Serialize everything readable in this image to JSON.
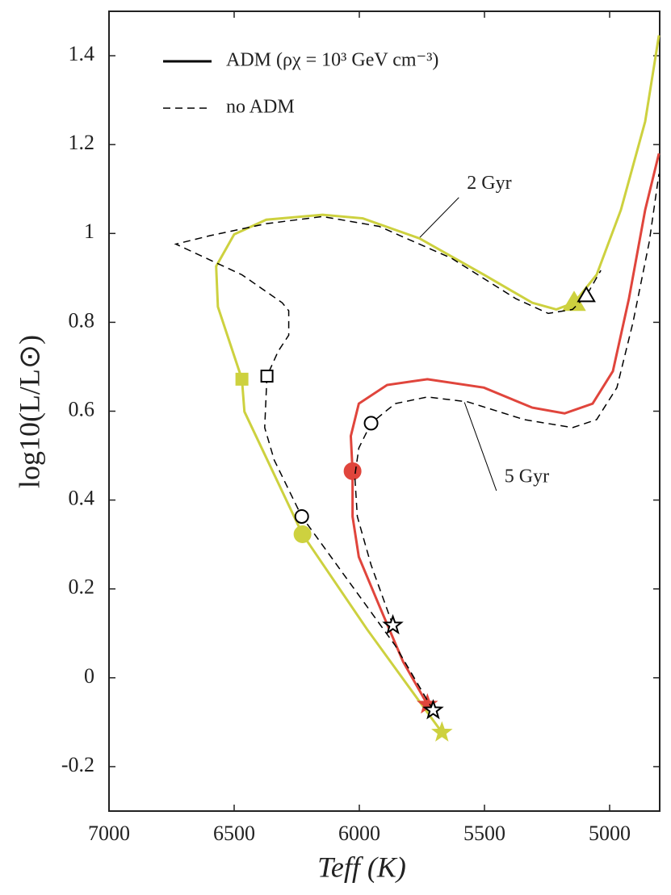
{
  "chart_data": {
    "type": "line",
    "xlabel": "Teff (K)",
    "ylabel": "log10(L/L⊙)",
    "xlim": [
      7000,
      4800
    ],
    "ylim": [
      -0.3,
      1.5
    ],
    "xticks": [
      7000,
      6500,
      6000,
      5500,
      5000
    ],
    "yticks": [
      -0.2,
      0,
      0.2,
      0.4,
      0.6,
      0.8,
      1,
      1.2,
      1.4
    ],
    "legend_loc": "upper left",
    "legend": [
      {
        "label": "ADM (ρχ = 10³ GeV cm⁻³)",
        "dash": false
      },
      {
        "label": "no ADM",
        "dash": true
      }
    ],
    "annotations": [
      {
        "text": "2 Gyr",
        "x": 5570,
        "y": 1.11,
        "to_x": 5760,
        "to_y": 0.99
      },
      {
        "text": "5 Gyr",
        "x": 5420,
        "y": 0.45,
        "to_x": 5580,
        "to_y": 0.62
      }
    ],
    "series": [
      {
        "color": "#cdd13f",
        "dash": false,
        "x": [
          5670,
          5969,
          6227,
          6459,
          6469,
          6565,
          6572,
          6500,
          6372,
          6147,
          5986,
          5760,
          5502,
          5309,
          5213,
          5142,
          5052,
          4955,
          4858,
          4803
        ],
        "values": [
          -0.123,
          0.109,
          0.323,
          0.599,
          0.672,
          0.835,
          0.926,
          0.998,
          1.031,
          1.042,
          1.034,
          0.989,
          0.907,
          0.844,
          0.829,
          0.844,
          0.907,
          1.053,
          1.252,
          1.446
        ],
        "markers": [
          {
            "symbol": "star",
            "x": 5670,
            "y": -0.123
          },
          {
            "symbol": "circle",
            "x": 6227,
            "y": 0.323
          },
          {
            "symbol": "square",
            "x": 6469,
            "y": 0.672
          },
          {
            "symbol": "triangle",
            "x": 5142,
            "y": 0.844
          }
        ]
      },
      {
        "color": "#e0453c",
        "dash": false,
        "x": [
          5728,
          5825,
          5921,
          6002,
          6027,
          6027,
          6034,
          6002,
          5889,
          5728,
          5502,
          5309,
          5180,
          5068,
          4987,
          4923,
          4858,
          4803
        ],
        "values": [
          -0.06,
          0.036,
          0.163,
          0.272,
          0.363,
          0.465,
          0.544,
          0.617,
          0.659,
          0.672,
          0.653,
          0.608,
          0.595,
          0.617,
          0.69,
          0.853,
          1.053,
          1.18
        ],
        "markers": [
          {
            "symbol": "star",
            "x": 5728,
            "y": -0.06
          },
          {
            "symbol": "circle",
            "x": 6027,
            "y": 0.465
          }
        ]
      },
      {
        "color": "#000000",
        "dash": true,
        "x": [
          5705,
          5857,
          6230,
          6340,
          6378,
          6369,
          6324,
          6282,
          6282,
          6308,
          6469,
          6733,
          6597,
          6372,
          6147,
          5921,
          5631,
          5374,
          5245,
          5148,
          5093,
          5035
        ],
        "values": [
          -0.073,
          0.073,
          0.363,
          0.49,
          0.563,
          0.679,
          0.735,
          0.771,
          0.826,
          0.844,
          0.907,
          0.976,
          0.995,
          1.022,
          1.038,
          1.016,
          0.944,
          0.853,
          0.82,
          0.829,
          0.86,
          0.917
        ],
        "markers": [
          {
            "symbol": "star",
            "x": 5705,
            "y": -0.073
          },
          {
            "symbol": "circle",
            "x": 6230,
            "y": 0.363
          },
          {
            "symbol": "square",
            "x": 6369,
            "y": 0.679
          },
          {
            "symbol": "triangle",
            "x": 5093,
            "y": 0.86
          }
        ]
      },
      {
        "color": "#000000",
        "dash": true,
        "x": [
          5866,
          5953,
          6008,
          6018,
          6002,
          5953,
          5857,
          5728,
          5567,
          5341,
          5148,
          5052,
          4971,
          4907,
          4842,
          4803
        ],
        "values": [
          0.118,
          0.254,
          0.363,
          0.454,
          0.517,
          0.573,
          0.617,
          0.632,
          0.621,
          0.581,
          0.563,
          0.581,
          0.653,
          0.799,
          0.98,
          1.134
        ],
        "markers": [
          {
            "symbol": "star",
            "x": 5866,
            "y": 0.118
          },
          {
            "symbol": "circle",
            "x": 5953,
            "y": 0.573
          }
        ]
      }
    ]
  }
}
